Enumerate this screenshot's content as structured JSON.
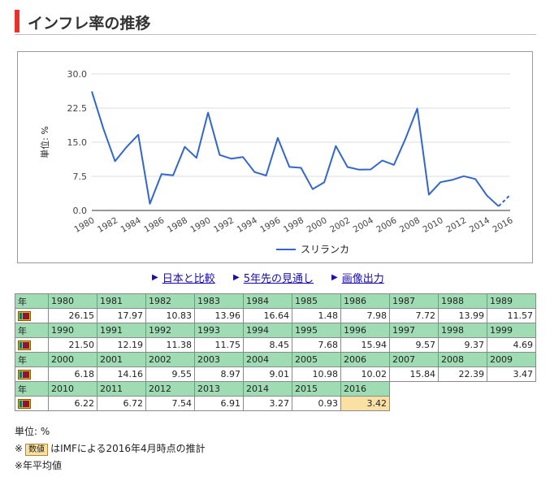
{
  "page": {
    "title": "インフレ率の推移"
  },
  "chart_data": {
    "type": "line",
    "ylabel": "単位: %",
    "ylim": [
      0,
      30
    ],
    "yticks": [
      "0.0",
      "7.5",
      "15.0",
      "22.5",
      "30.0"
    ],
    "xticks": [
      "1980",
      "1982",
      "1984",
      "1986",
      "1988",
      "1990",
      "1992",
      "1994",
      "1996",
      "1998",
      "2000",
      "2002",
      "2004",
      "2006",
      "2008",
      "2010",
      "2012",
      "2014",
      "2016"
    ],
    "x": [
      1980,
      1981,
      1982,
      1983,
      1984,
      1985,
      1986,
      1987,
      1988,
      1989,
      1990,
      1991,
      1992,
      1993,
      1994,
      1995,
      1996,
      1997,
      1998,
      1999,
      2000,
      2001,
      2002,
      2003,
      2004,
      2005,
      2006,
      2007,
      2008,
      2009,
      2010,
      2011,
      2012,
      2013,
      2014,
      2015,
      2016
    ],
    "series": [
      {
        "name": "スリランカ",
        "color": "#3366cc",
        "values": [
          26.15,
          17.97,
          10.83,
          13.96,
          16.64,
          1.48,
          7.98,
          7.72,
          13.99,
          11.57,
          21.5,
          12.19,
          11.38,
          11.75,
          8.45,
          7.68,
          15.94,
          9.57,
          9.37,
          4.69,
          6.18,
          14.16,
          9.55,
          8.97,
          9.01,
          10.98,
          10.02,
          15.84,
          22.39,
          3.47,
          6.22,
          6.72,
          7.54,
          6.91,
          3.27,
          0.93,
          3.42
        ]
      }
    ],
    "estimate_from": 2016,
    "legend": "bottom",
    "grid": true
  },
  "links": [
    {
      "label": "日本と比較"
    },
    {
      "label": "5年先の見通し"
    },
    {
      "label": "画像出力"
    }
  ],
  "table": {
    "corner_label": "年",
    "rows": [
      {
        "years": [
          "1980",
          "1981",
          "1982",
          "1983",
          "1984",
          "1985",
          "1986",
          "1987",
          "1988",
          "1989"
        ],
        "values": [
          "26.15",
          "17.97",
          "10.83",
          "13.96",
          "16.64",
          "1.48",
          "7.98",
          "7.72",
          "13.99",
          "11.57"
        ]
      },
      {
        "years": [
          "1990",
          "1991",
          "1992",
          "1993",
          "1994",
          "1995",
          "1996",
          "1997",
          "1998",
          "1999"
        ],
        "values": [
          "21.50",
          "12.19",
          "11.38",
          "11.75",
          "8.45",
          "7.68",
          "15.94",
          "9.57",
          "9.37",
          "4.69"
        ]
      },
      {
        "years": [
          "2000",
          "2001",
          "2002",
          "2003",
          "2004",
          "2005",
          "2006",
          "2007",
          "2008",
          "2009"
        ],
        "values": [
          "6.18",
          "14.16",
          "9.55",
          "8.97",
          "9.01",
          "10.98",
          "10.02",
          "15.84",
          "22.39",
          "3.47"
        ]
      },
      {
        "years": [
          "2010",
          "2011",
          "2012",
          "2013",
          "2014",
          "2015",
          "2016"
        ],
        "values": [
          "6.22",
          "6.72",
          "7.54",
          "6.91",
          "3.27",
          "0.93",
          "3.42"
        ]
      }
    ],
    "estimate_color": "#fbe0a3",
    "header_color": "#9fdcb4"
  },
  "notes": {
    "unit": "単位: %",
    "estimate_prefix": "※",
    "badge": "数値",
    "estimate_text": "はIMFによる2016年4月時点の推計",
    "average": "※年平均値"
  },
  "colors": {
    "accent": "#e8322e",
    "line": "#3366cc",
    "link": "#1a0dab"
  }
}
